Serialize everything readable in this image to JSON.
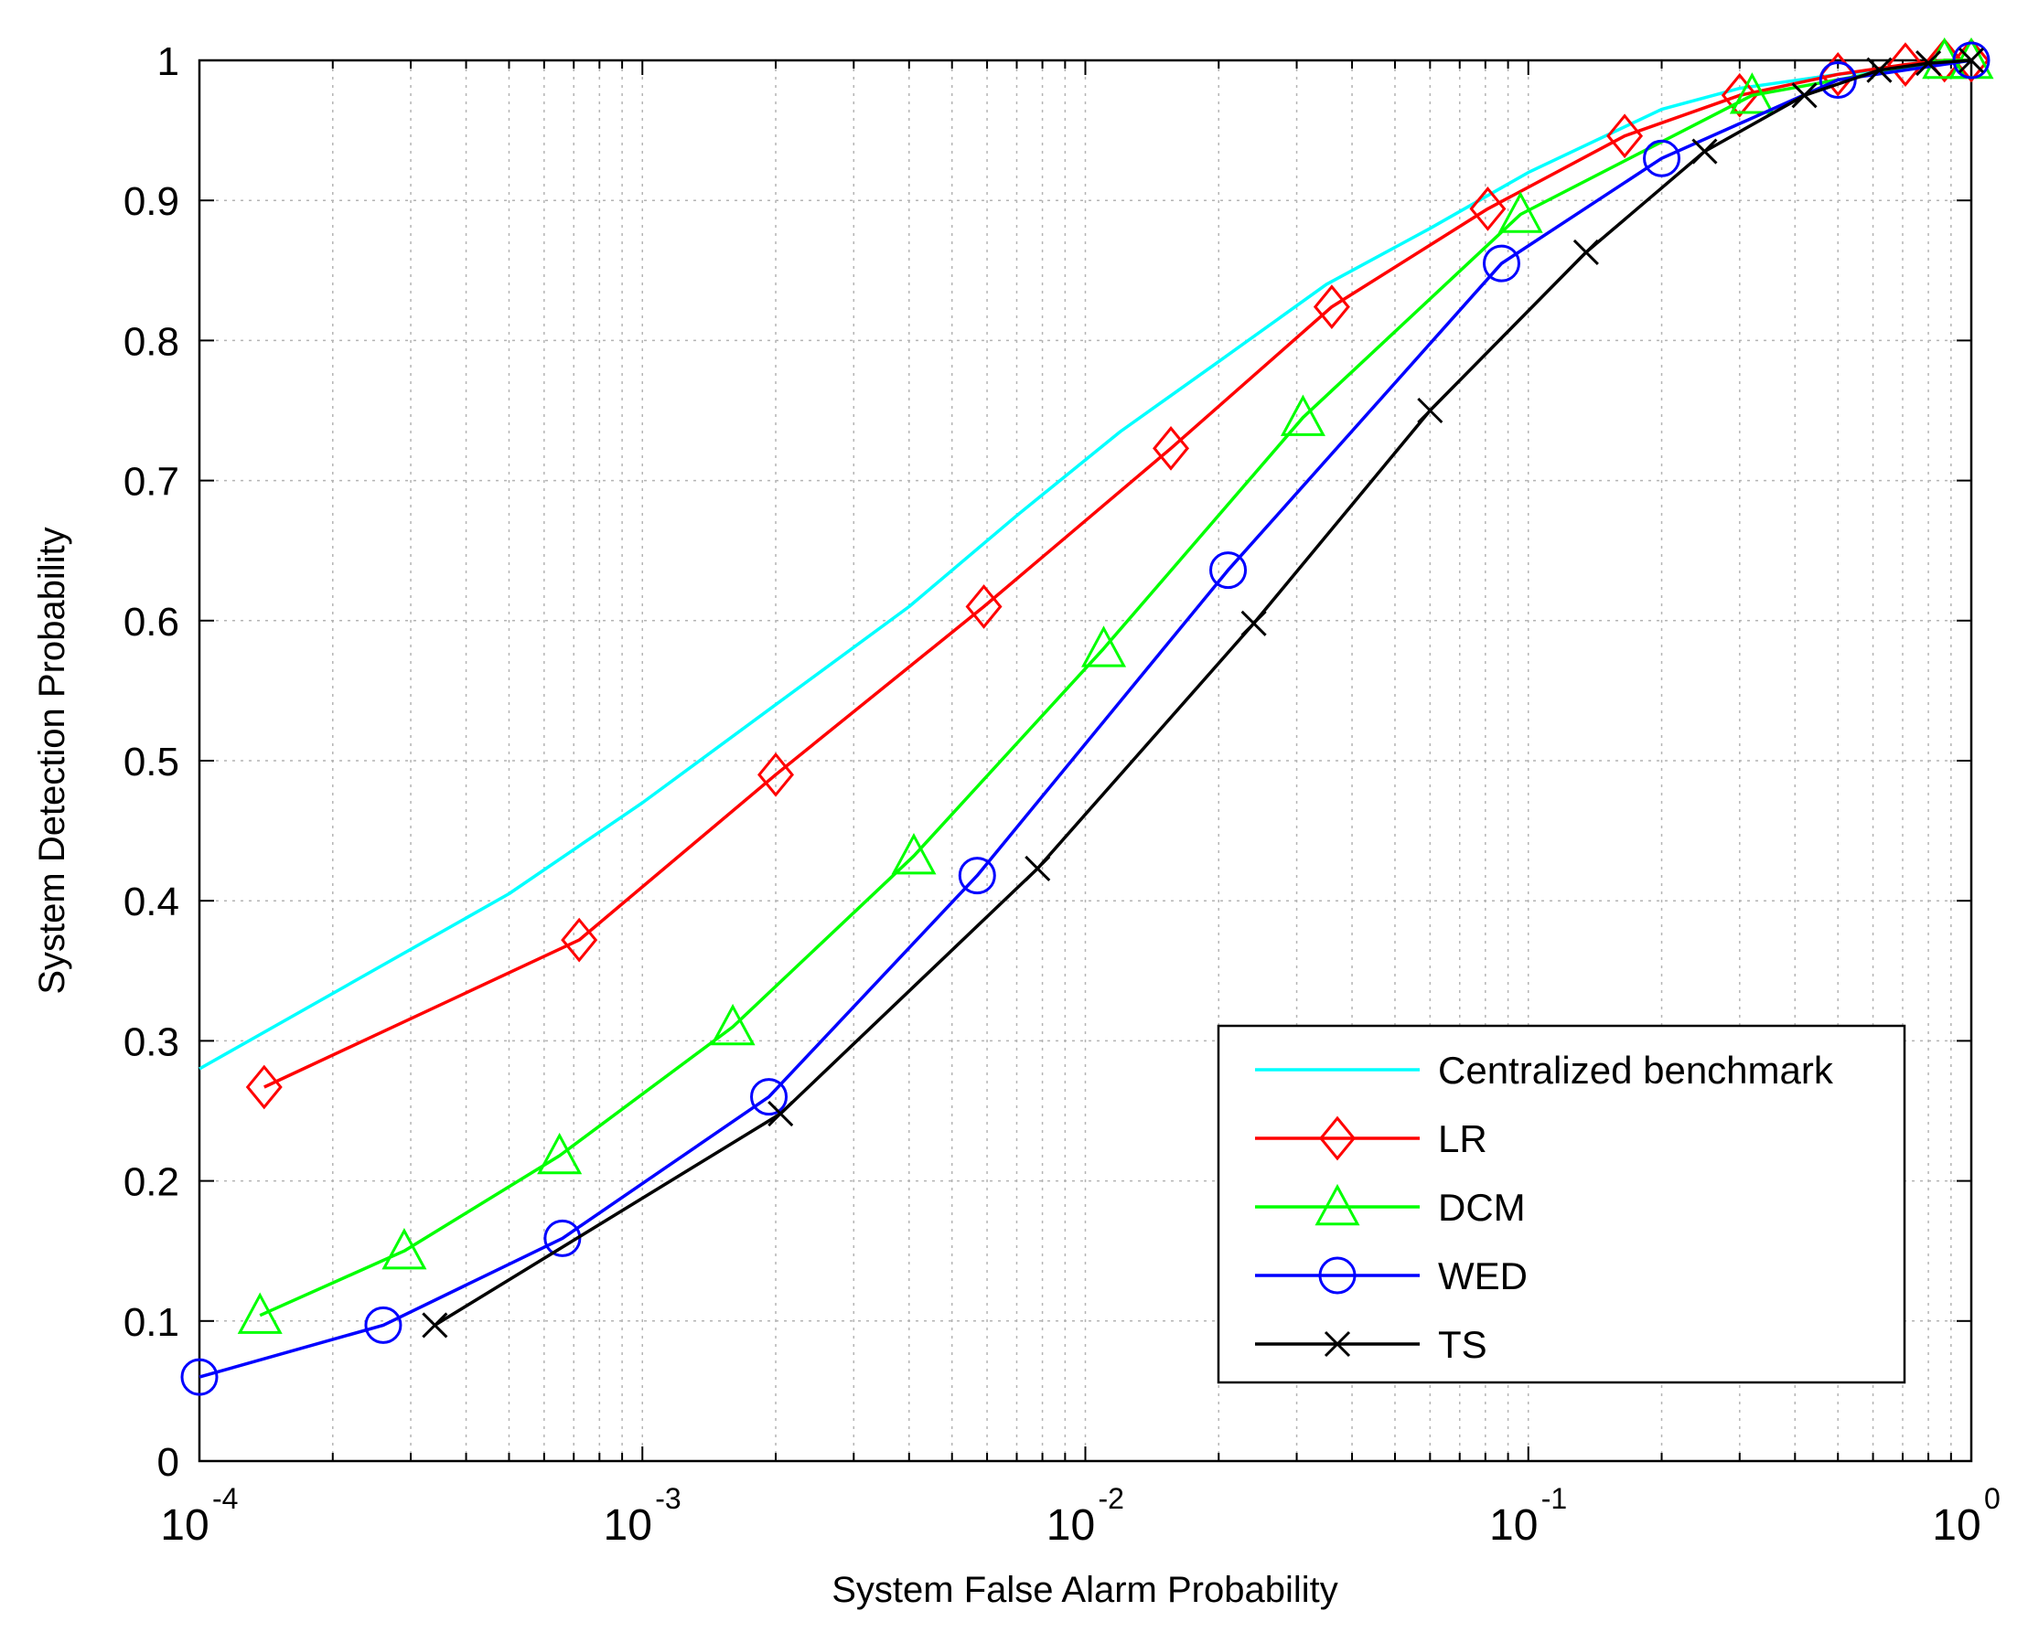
{
  "chart_data": {
    "type": "line",
    "title": "",
    "xlabel": "System False Alarm Probability",
    "ylabel": "System Detection Probability",
    "xscale": "log",
    "xlim": [
      0.0001,
      1
    ],
    "ylim": [
      0,
      1
    ],
    "grid": true,
    "legend_position": "bottom-right",
    "x_ticks": [
      {
        "base": "10",
        "exp": "-4",
        "value": 0.0001
      },
      {
        "base": "10",
        "exp": "-3",
        "value": 0.001
      },
      {
        "base": "10",
        "exp": "-2",
        "value": 0.01
      },
      {
        "base": "10",
        "exp": "-1",
        "value": 0.1
      },
      {
        "base": "10",
        "exp": "0",
        "value": 1
      }
    ],
    "y_ticks": [
      {
        "label": "0",
        "value": 0
      },
      {
        "label": "0.1",
        "value": 0.1
      },
      {
        "label": "0.2",
        "value": 0.2
      },
      {
        "label": "0.3",
        "value": 0.3
      },
      {
        "label": "0.4",
        "value": 0.4
      },
      {
        "label": "0.5",
        "value": 0.5
      },
      {
        "label": "0.6",
        "value": 0.6
      },
      {
        "label": "0.7",
        "value": 0.7
      },
      {
        "label": "0.8",
        "value": 0.8
      },
      {
        "label": "0.9",
        "value": 0.9
      },
      {
        "label": "1",
        "value": 1
      }
    ],
    "series": [
      {
        "name": "Centralized benchmark",
        "color": "#00ffff",
        "marker": "none",
        "x": [
          0.0001,
          0.0005,
          0.001,
          0.002,
          0.004,
          0.007,
          0.012,
          0.02,
          0.035,
          0.06,
          0.1,
          0.2,
          0.3,
          0.5,
          0.7,
          0.9,
          1.0
        ],
        "y": [
          0.28,
          0.405,
          0.47,
          0.54,
          0.61,
          0.675,
          0.735,
          0.785,
          0.84,
          0.88,
          0.92,
          0.965,
          0.98,
          0.99,
          0.995,
          0.999,
          1.0
        ]
      },
      {
        "name": "LR",
        "color": "#ff0000",
        "marker": "diamond",
        "x": [
          0.00014,
          0.00072,
          0.002,
          0.0059,
          0.0156,
          0.036,
          0.081,
          0.165,
          0.3,
          0.5,
          0.71,
          0.87,
          1.0
        ],
        "y": [
          0.267,
          0.372,
          0.49,
          0.61,
          0.723,
          0.824,
          0.894,
          0.946,
          0.975,
          0.99,
          0.997,
          1.0,
          1.0
        ]
      },
      {
        "name": "DCM",
        "color": "#00ff00",
        "marker": "triangle",
        "x": [
          0.000137,
          0.00029,
          0.00065,
          0.0016,
          0.0041,
          0.011,
          0.031,
          0.096,
          0.32,
          0.87,
          1.0
        ],
        "y": [
          0.104,
          0.15,
          0.218,
          0.31,
          0.432,
          0.58,
          0.745,
          0.89,
          0.975,
          1.0,
          1.0
        ]
      },
      {
        "name": "WED",
        "color": "#0000ff",
        "marker": "circle",
        "x": [
          0.0001,
          0.00026,
          0.00066,
          0.00193,
          0.0057,
          0.021,
          0.087,
          0.2,
          0.5,
          1.0
        ],
        "y": [
          0.06,
          0.097,
          0.159,
          0.26,
          0.418,
          0.636,
          0.855,
          0.93,
          0.986,
          1.0
        ]
      },
      {
        "name": "TS",
        "color": "#000000",
        "marker": "x",
        "x": [
          0.00034,
          0.00205,
          0.0078,
          0.024,
          0.06,
          0.135,
          0.25,
          0.42,
          0.62,
          0.8,
          1.0
        ],
        "y": [
          0.097,
          0.248,
          0.423,
          0.598,
          0.75,
          0.863,
          0.935,
          0.975,
          0.993,
          0.998,
          1.0
        ]
      }
    ]
  }
}
